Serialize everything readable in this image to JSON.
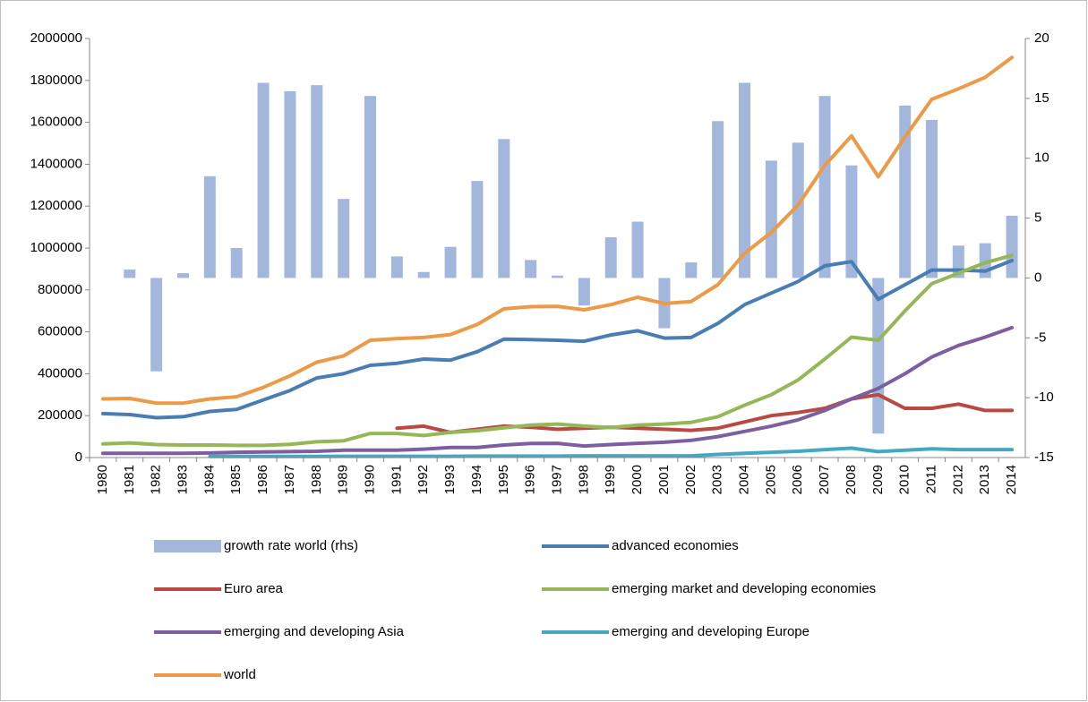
{
  "chart_data": {
    "type": "bar_line",
    "categories": [
      "1980",
      "1981",
      "1982",
      "1983",
      "1984",
      "1985",
      "1986",
      "1987",
      "1988",
      "1989",
      "1990",
      "1991",
      "1992",
      "1993",
      "1994",
      "1995",
      "1996",
      "1997",
      "1998",
      "1999",
      "2000",
      "2001",
      "2002",
      "2003",
      "2004",
      "2005",
      "2006",
      "2007",
      "2008",
      "2009",
      "2010",
      "2011",
      "2012",
      "2013",
      "2014"
    ],
    "ylim": [
      0,
      2000000
    ],
    "yticks": [
      0,
      200000,
      400000,
      600000,
      800000,
      1000000,
      1200000,
      1400000,
      1600000,
      1800000,
      2000000
    ],
    "y2lim": [
      -15,
      20
    ],
    "y2ticks": [
      -15,
      -10,
      -5,
      0,
      5,
      10,
      15,
      20
    ],
    "legend": "bottom",
    "series": [
      {
        "name": "growth rate world (rhs)",
        "type": "bar",
        "axis": "y2",
        "color": "#a3b7dd",
        "values": [
          null,
          0.7,
          -7.8,
          0.4,
          8.5,
          2.5,
          16.3,
          15.6,
          16.1,
          6.6,
          15.2,
          1.8,
          0.5,
          2.6,
          8.1,
          11.6,
          1.5,
          0.2,
          -2.3,
          3.4,
          4.7,
          -4.2,
          1.3,
          13.1,
          16.3,
          9.8,
          11.3,
          15.2,
          9.4,
          -13.0,
          14.4,
          13.2,
          2.7,
          2.9,
          5.2
        ]
      },
      {
        "name": "advanced economies",
        "type": "line",
        "color": "#4a7eb3",
        "values": [
          210000,
          205000,
          190000,
          195000,
          220000,
          230000,
          275000,
          320000,
          380000,
          400000,
          440000,
          450000,
          470000,
          465000,
          505000,
          565000,
          563000,
          560000,
          555000,
          585000,
          605000,
          570000,
          573000,
          640000,
          730000,
          785000,
          840000,
          915000,
          935000,
          755000,
          825000,
          895000,
          895000,
          890000,
          940000
        ]
      },
      {
        "name": "Euro area",
        "type": "line",
        "color": "#b94a43",
        "values": [
          null,
          null,
          null,
          null,
          null,
          null,
          null,
          null,
          null,
          null,
          null,
          140000,
          150000,
          120000,
          135000,
          150000,
          145000,
          135000,
          140000,
          145000,
          140000,
          135000,
          130000,
          140000,
          170000,
          200000,
          215000,
          235000,
          280000,
          300000,
          235000,
          235000,
          255000,
          225000,
          225000
        ]
      },
      {
        "name": "emerging market and developing economies",
        "type": "line",
        "color": "#95b757",
        "values": [
          65000,
          70000,
          62000,
          60000,
          60000,
          58000,
          58000,
          63000,
          75000,
          80000,
          115000,
          115000,
          105000,
          120000,
          128000,
          142000,
          155000,
          160000,
          150000,
          143000,
          155000,
          160000,
          168000,
          195000,
          250000,
          300000,
          370000,
          470000,
          575000,
          560000,
          700000,
          830000,
          880000,
          930000,
          965000
        ]
      },
      {
        "name": "emerging and developing Asia",
        "type": "line",
        "color": "#7d5fa0",
        "values": [
          20000,
          20000,
          20000,
          20000,
          22000,
          25000,
          27000,
          28000,
          30000,
          35000,
          35000,
          35000,
          40000,
          48000,
          48000,
          60000,
          67000,
          68000,
          55000,
          62000,
          68000,
          73000,
          82000,
          100000,
          125000,
          150000,
          180000,
          225000,
          280000,
          330000,
          400000,
          480000,
          535000,
          575000,
          620000
        ]
      },
      {
        "name": "emerging and developing Europe",
        "type": "line",
        "color": "#44a8c2",
        "values": [
          null,
          null,
          null,
          null,
          5000,
          5000,
          5000,
          5000,
          5000,
          6000,
          6000,
          6000,
          6000,
          6000,
          7000,
          7000,
          7000,
          7000,
          8000,
          8000,
          8000,
          8000,
          8000,
          15000,
          20000,
          25000,
          30000,
          38000,
          45000,
          28000,
          35000,
          42000,
          38000,
          38000,
          38000
        ]
      },
      {
        "name": "world",
        "type": "line",
        "color": "#ec9a47",
        "values": [
          280000,
          282000,
          260000,
          260000,
          280000,
          290000,
          335000,
          390000,
          455000,
          485000,
          560000,
          568000,
          573000,
          587000,
          635000,
          710000,
          720000,
          722000,
          705000,
          730000,
          765000,
          735000,
          745000,
          825000,
          975000,
          1075000,
          1205000,
          1395000,
          1535000,
          1340000,
          1530000,
          1710000,
          1760000,
          1815000,
          1910000
        ]
      }
    ]
  }
}
